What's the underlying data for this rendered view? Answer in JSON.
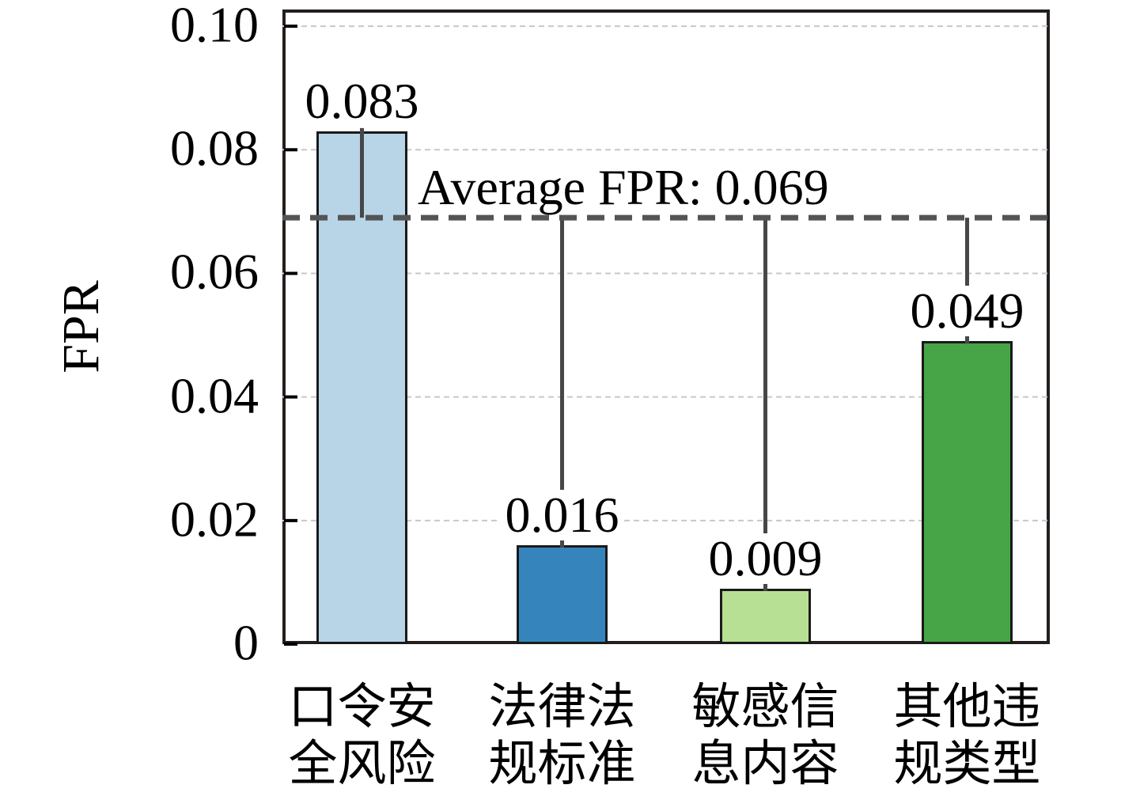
{
  "chart_data": {
    "type": "bar",
    "title": "",
    "xlabel": "",
    "ylabel": "FPR",
    "categories": [
      "口令安全风险",
      "法律法规标准",
      "敏感信息内容",
      "其他违规类型"
    ],
    "categories_two_line": [
      [
        "口令安",
        "全风险"
      ],
      [
        "法律法",
        "规标准"
      ],
      [
        "敏感信",
        "息内容"
      ],
      [
        "其他违",
        "规类型"
      ]
    ],
    "values": [
      0.083,
      0.016,
      0.009,
      0.049
    ],
    "value_labels": [
      "0.083",
      "0.016",
      "0.009",
      "0.049"
    ],
    "bar_colors": [
      "#b8d5e8",
      "#3585bc",
      "#b7e094",
      "#47a447"
    ],
    "bar_edge_color": "#1a1a1a",
    "average_line": {
      "value": 0.069,
      "label": "Average FPR: 0.069",
      "color": "#545454",
      "style": "dashed"
    },
    "connector_color": "#474747",
    "yticks": [
      0,
      0.02,
      0.04,
      0.06,
      0.08,
      0.1
    ],
    "ytick_labels": [
      "0",
      "0.02",
      "0.04",
      "0.06",
      "0.08",
      "0.10"
    ],
    "ylim": [
      0,
      0.1027
    ],
    "grid": "horizontal dashed",
    "gridline_color": "#c8c8c8",
    "legend": "none",
    "text_color": "#000000",
    "frame_color": "#241f1c"
  }
}
